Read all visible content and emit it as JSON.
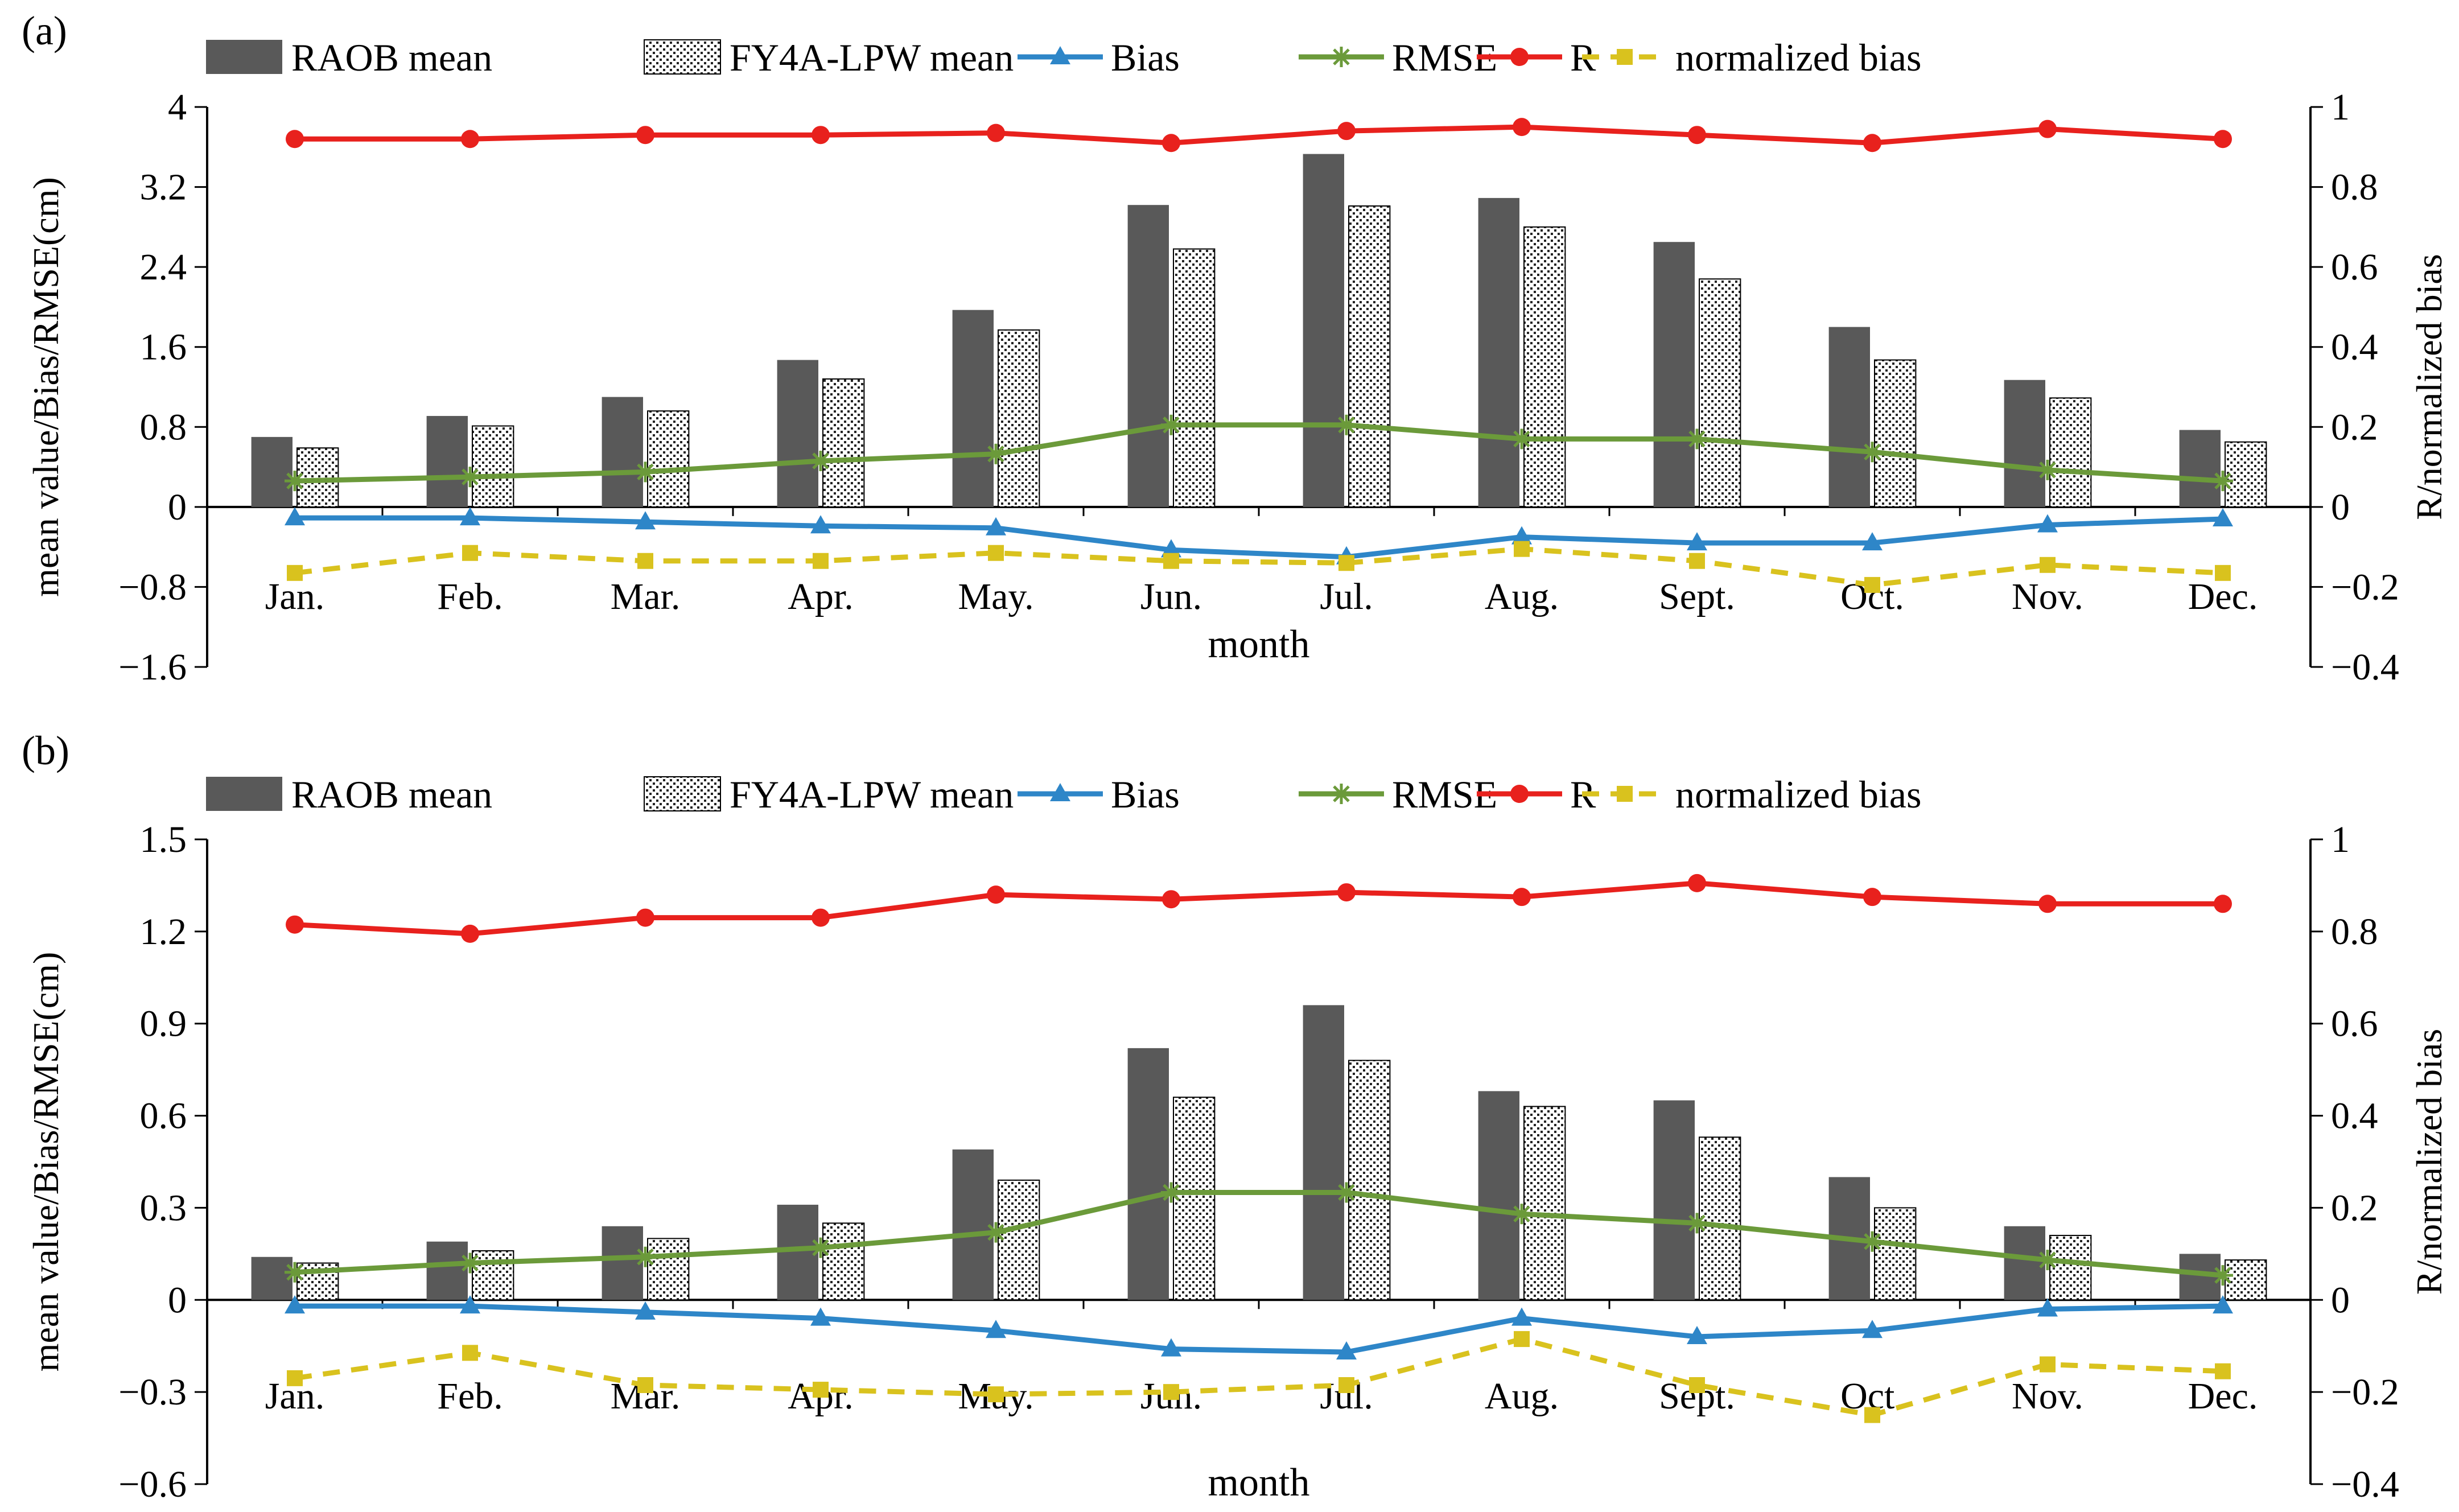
{
  "colors": {
    "raob_bar": "#595959",
    "fy4a_bar_bg": "#ffffff",
    "fy4a_bar_dots": "#222222",
    "bias": "#2e86c8",
    "rmse": "#6b9a3a",
    "r": "#e8211d",
    "normalized_bias": "#d9c21e",
    "axis": "#000000"
  },
  "chart_data": [
    {
      "type": "bar",
      "panel_label": "(a)",
      "title": "",
      "xlabel": "month",
      "ylabel": "mean value/Bias/RMSE(cm)",
      "y2label": "R/normalized bias",
      "ylim": [
        -1.6,
        4
      ],
      "yticks": [
        4,
        3.2,
        2.4,
        1.6,
        0.8,
        0,
        -0.8,
        -1.6
      ],
      "ytick_labels": [
        "4",
        "3.2",
        "2.4",
        "1.6",
        "0.8",
        "0",
        "−0.8",
        "−1.6"
      ],
      "y2lim": [
        -0.4,
        1
      ],
      "y2ticks": [
        1,
        0.8,
        0.6,
        0.4,
        0.2,
        0,
        -0.2,
        -0.4
      ],
      "y2tick_labels": [
        "1",
        "0.8",
        "0.6",
        "0.4",
        "0.2",
        "0",
        "−0.2",
        "−0.4"
      ],
      "grid": false,
      "legend_position": "top",
      "categories": [
        "Jan.",
        "Feb.",
        "Mar.",
        "Apr.",
        "May.",
        "Jun.",
        "Jul.",
        "Aug.",
        "Sept.",
        "Oct.",
        "Nov.",
        "Dec."
      ],
      "series": [
        {
          "name": "RAOB mean",
          "kind": "bar",
          "axis": "left",
          "values": [
            0.7,
            0.91,
            1.1,
            1.47,
            1.97,
            3.02,
            3.53,
            3.09,
            2.65,
            1.8,
            1.27,
            0.77
          ]
        },
        {
          "name": "FY4A-LPW mean",
          "kind": "bar",
          "axis": "left",
          "values": [
            0.59,
            0.81,
            0.96,
            1.28,
            1.77,
            2.58,
            3.01,
            2.8,
            2.28,
            1.47,
            1.09,
            0.65
          ]
        },
        {
          "name": "Bias",
          "kind": "line",
          "axis": "left",
          "marker": "triangle",
          "values": [
            -0.11,
            -0.11,
            -0.15,
            -0.19,
            -0.21,
            -0.43,
            -0.5,
            -0.3,
            -0.36,
            -0.36,
            -0.18,
            -0.12
          ]
        },
        {
          "name": "RMSE",
          "kind": "line",
          "axis": "left",
          "marker": "star",
          "values": [
            0.26,
            0.3,
            0.35,
            0.46,
            0.53,
            0.82,
            0.82,
            0.68,
            0.68,
            0.55,
            0.37,
            0.26
          ]
        },
        {
          "name": "R",
          "kind": "line",
          "axis": "right",
          "marker": "circle",
          "values": [
            0.92,
            0.92,
            0.93,
            0.93,
            0.935,
            0.91,
            0.94,
            0.95,
            0.93,
            0.91,
            0.945,
            0.92
          ]
        },
        {
          "name": "normalized bias",
          "kind": "line",
          "axis": "right",
          "marker": "square",
          "dashed": true,
          "values": [
            -0.165,
            -0.115,
            -0.135,
            -0.135,
            -0.115,
            -0.135,
            -0.14,
            -0.105,
            -0.135,
            -0.195,
            -0.145,
            -0.165
          ]
        }
      ]
    },
    {
      "type": "bar",
      "panel_label": "(b)",
      "title": "",
      "xlabel": "month",
      "ylabel": "mean value/Bias/RMSE(cm)",
      "y2label": "R/normalized bias",
      "ylim": [
        -0.6,
        1.5
      ],
      "yticks": [
        1.5,
        1.2,
        0.9,
        0.6,
        0.3,
        0,
        -0.3,
        -0.6
      ],
      "ytick_labels": [
        "1.5",
        "1.2",
        "0.9",
        "0.6",
        "0.3",
        "0",
        "−0.3",
        "−0.6"
      ],
      "y2lim": [
        -0.4,
        1
      ],
      "y2ticks": [
        1,
        0.8,
        0.6,
        0.4,
        0.2,
        0,
        -0.2,
        -0.4
      ],
      "y2tick_labels": [
        "1",
        "0.8",
        "0.6",
        "0.4",
        "0.2",
        "0",
        "−0.2",
        "−0.4"
      ],
      "grid": false,
      "legend_position": "top",
      "categories": [
        "Jan.",
        "Feb.",
        "Mar.",
        "Apr.",
        "May.",
        "Jun.",
        "Jul.",
        "Aug.",
        "Sept.",
        "Oct.",
        "Nov.",
        "Dec."
      ],
      "series": [
        {
          "name": "RAOB mean",
          "kind": "bar",
          "axis": "left",
          "values": [
            0.14,
            0.19,
            0.24,
            0.31,
            0.49,
            0.82,
            0.96,
            0.68,
            0.65,
            0.4,
            0.24,
            0.15
          ]
        },
        {
          "name": "FY4A-LPW mean",
          "kind": "bar",
          "axis": "left",
          "values": [
            0.12,
            0.16,
            0.2,
            0.25,
            0.39,
            0.66,
            0.78,
            0.63,
            0.53,
            0.3,
            0.21,
            0.13
          ]
        },
        {
          "name": "Bias",
          "kind": "line",
          "axis": "left",
          "marker": "triangle",
          "values": [
            -0.02,
            -0.02,
            -0.04,
            -0.06,
            -0.1,
            -0.16,
            -0.17,
            -0.06,
            -0.12,
            -0.1,
            -0.03,
            -0.02
          ]
        },
        {
          "name": "RMSE",
          "kind": "line",
          "axis": "left",
          "marker": "star",
          "values": [
            0.09,
            0.12,
            0.14,
            0.17,
            0.22,
            0.35,
            0.35,
            0.28,
            0.25,
            0.19,
            0.13,
            0.08
          ]
        },
        {
          "name": "R",
          "kind": "line",
          "axis": "right",
          "marker": "circle",
          "values": [
            0.815,
            0.795,
            0.83,
            0.83,
            0.88,
            0.87,
            0.885,
            0.875,
            0.905,
            0.875,
            0.86,
            0.86
          ]
        },
        {
          "name": "normalized bias",
          "kind": "line",
          "axis": "right",
          "marker": "square",
          "dashed": true,
          "values": [
            -0.17,
            -0.115,
            -0.185,
            -0.195,
            -0.205,
            -0.2,
            -0.185,
            -0.085,
            -0.185,
            -0.25,
            -0.14,
            -0.155
          ]
        }
      ]
    }
  ]
}
